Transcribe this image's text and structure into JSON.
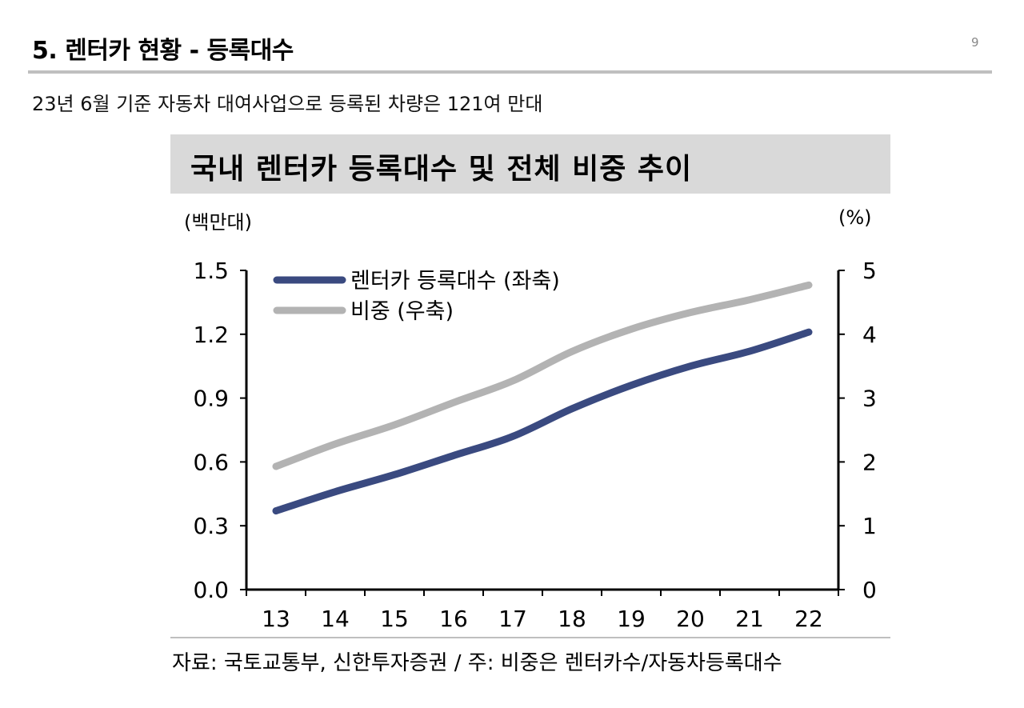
{
  "header": {
    "title": "5. 렌터카 현황 - 등록대수",
    "page_number": "9",
    "subtitle": "23년 6월 기준 자동차 대여사업으로 등록된 차량은 121여 만대"
  },
  "source_note": "자료: 국토교통부, 신한투자증권 / 주: 비중은 렌터카수/자동차등록대수",
  "chart_data": {
    "type": "line",
    "title": "국내 렌터카 등록대수 및 전체 비중 추이",
    "categories": [
      "13",
      "14",
      "15",
      "16",
      "17",
      "18",
      "19",
      "20",
      "21",
      "22"
    ],
    "left_axis": {
      "unit_label": "(백만대)",
      "ylim": [
        0,
        1.5
      ],
      "ticks": [
        "0.0",
        "0.3",
        "0.6",
        "0.9",
        "1.2",
        "1.5"
      ]
    },
    "right_axis": {
      "unit_label": "(%)",
      "ylim": [
        0,
        5
      ],
      "ticks": [
        "0",
        "1",
        "2",
        "3",
        "4",
        "5"
      ]
    },
    "series": [
      {
        "name": "렌터카 등록대수 (좌축)",
        "axis": "left",
        "color": "#3a4a80",
        "values": [
          0.37,
          0.46,
          0.54,
          0.63,
          0.72,
          0.85,
          0.96,
          1.05,
          1.12,
          1.21
        ]
      },
      {
        "name": "비중 (우축)",
        "axis": "right",
        "color": "#b3b3b3",
        "values": [
          1.93,
          2.28,
          2.58,
          2.93,
          3.27,
          3.73,
          4.08,
          4.34,
          4.54,
          4.77
        ]
      }
    ],
    "legend_position": "top-left",
    "grid": false
  }
}
